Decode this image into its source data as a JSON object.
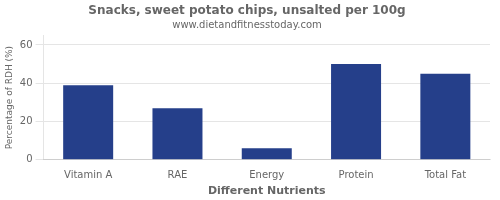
{
  "chart_data": {
    "type": "bar",
    "title": "Snacks, sweet potato chips, unsalted per 100g",
    "subtitle": "www.dietandfitnesstoday.com",
    "categories": [
      "Vitamin A",
      "RAE",
      "Energy",
      "Protein",
      "Total Fat"
    ],
    "values": [
      39,
      27,
      6,
      50,
      45
    ],
    "color": "#253f8a",
    "xlabel": "Different Nutrients",
    "ylabel": "Percentage of RDH (%)",
    "ylim": [
      0,
      65
    ],
    "yticks": [
      0,
      20,
      40,
      60
    ],
    "grid": true
  }
}
